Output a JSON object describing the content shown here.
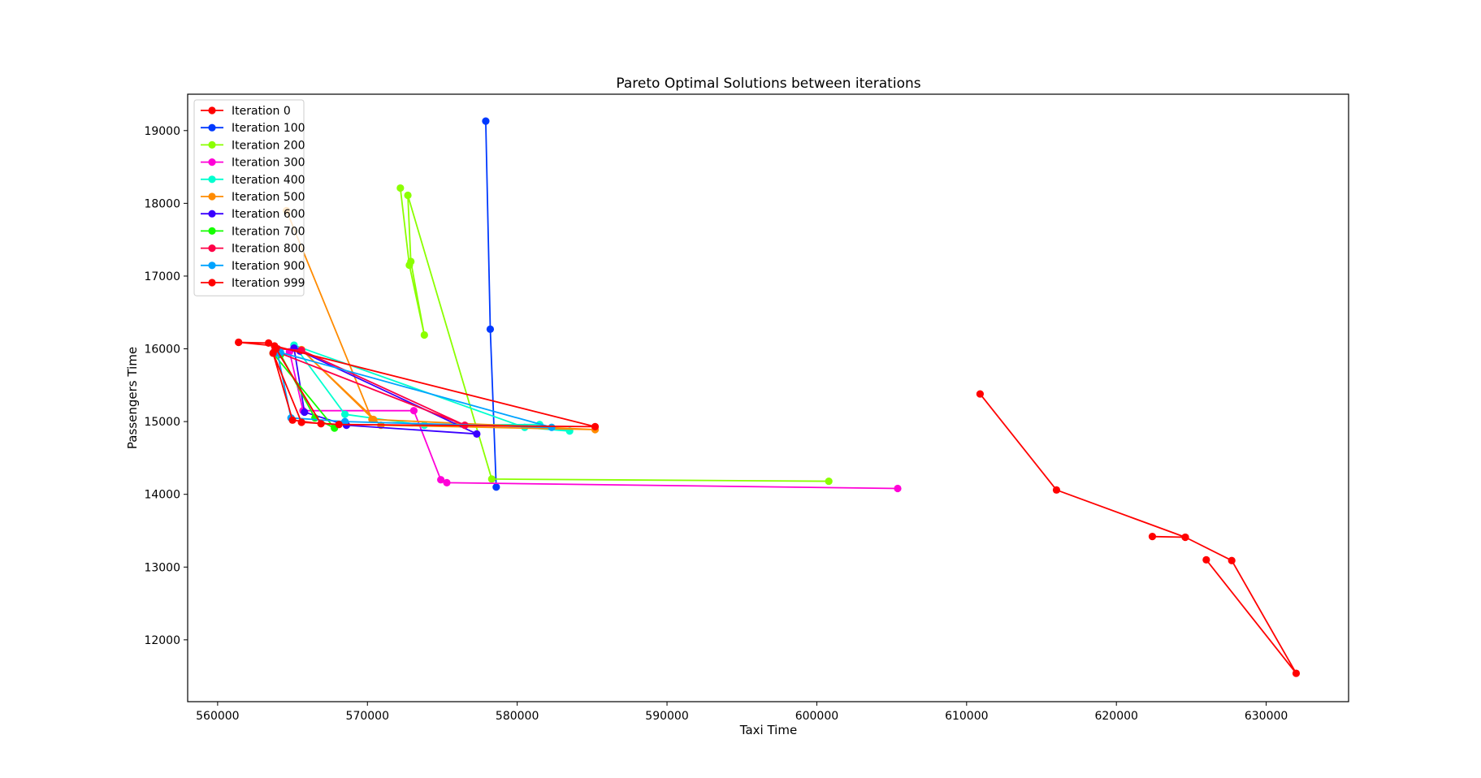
{
  "chart_data": {
    "type": "line",
    "title": "Pareto Optimal Solutions between iterations",
    "xlabel": "Taxi Time",
    "ylabel": "Passengers Time",
    "xlim": [
      558000,
      635500
    ],
    "ylim": [
      11150,
      19500
    ],
    "xticks": [
      560000,
      570000,
      580000,
      590000,
      600000,
      610000,
      620000,
      630000
    ],
    "yticks": [
      12000,
      13000,
      14000,
      15000,
      16000,
      17000,
      18000,
      19000
    ],
    "xtick_labels": [
      "560000",
      "570000",
      "580000",
      "590000",
      "600000",
      "610000",
      "620000",
      "630000"
    ],
    "ytick_labels": [
      "12000",
      "13000",
      "14000",
      "15000",
      "16000",
      "17000",
      "18000",
      "19000"
    ],
    "legend_position": "upper-left",
    "series": [
      {
        "name": "Iteration 0",
        "color": "#ff0000",
        "x": [
          610900,
          616000,
          624600,
          622400,
          624600,
          627700,
          632000,
          626000
        ],
        "y": [
          15380,
          14060,
          13410,
          13420,
          13410,
          13090,
          11540,
          13100
        ]
      },
      {
        "name": "Iteration 100",
        "color": "#0039ff",
        "x": [
          578600,
          578200,
          577900
        ],
        "y": [
          14100,
          16270,
          19130
        ]
      },
      {
        "name": "Iteration 200",
        "color": "#8bff00",
        "x": [
          572200,
          572800,
          573800,
          572900,
          572700,
          578300,
          600800
        ],
        "y": [
          18210,
          17150,
          16190,
          17200,
          18110,
          14210,
          14180
        ]
      },
      {
        "name": "Iteration 300",
        "color": "#ff00d7",
        "x": [
          605400,
          575300,
          574900,
          573100,
          565700,
          564800
        ],
        "y": [
          14080,
          14160,
          14200,
          15150,
          15150,
          15960
        ]
      },
      {
        "name": "Iteration 400",
        "color": "#00ffcf",
        "x": [
          565100,
          568500,
          573800,
          581500,
          583500,
          580500,
          565100
        ],
        "y": [
          16050,
          15100,
          14950,
          14960,
          14870,
          14920,
          16050
        ]
      },
      {
        "name": "Iteration 500",
        "color": "#ff8b00",
        "x": [
          564600,
          570300,
          585200,
          570900,
          565600,
          570400
        ],
        "y": [
          17900,
          15030,
          14890,
          14950,
          15990,
          15030
        ]
      },
      {
        "name": "Iteration 600",
        "color": "#3a00ff",
        "x": [
          565100,
          565800,
          568600,
          577300,
          565500
        ],
        "y": [
          16010,
          15130,
          14950,
          14830,
          15970
        ]
      },
      {
        "name": "Iteration 700",
        "color": "#14ff00",
        "x": [
          564200,
          566500,
          567800,
          563700
        ],
        "y": [
          15920,
          15050,
          14910,
          15940
        ]
      },
      {
        "name": "Iteration 800",
        "color": "#ff0047",
        "x": [
          564000,
          565600,
          576500,
          563800
        ],
        "y": [
          16000,
          15980,
          14950,
          15970
        ]
      },
      {
        "name": "Iteration 900",
        "color": "#00a3ff",
        "x": [
          564000,
          564900,
          568500,
          582300,
          564200
        ],
        "y": [
          15940,
          15050,
          15000,
          14920,
          15950
        ]
      },
      {
        "name": "Iteration 999",
        "color": "#ff0000",
        "x": [
          561400,
          563400,
          563900,
          566900,
          565000,
          563700,
          565600,
          568100,
          585200,
          563800,
          561400
        ],
        "y": [
          16090,
          16080,
          16000,
          14970,
          15020,
          15940,
          14990,
          14960,
          14930,
          16040,
          16090
        ]
      }
    ]
  }
}
